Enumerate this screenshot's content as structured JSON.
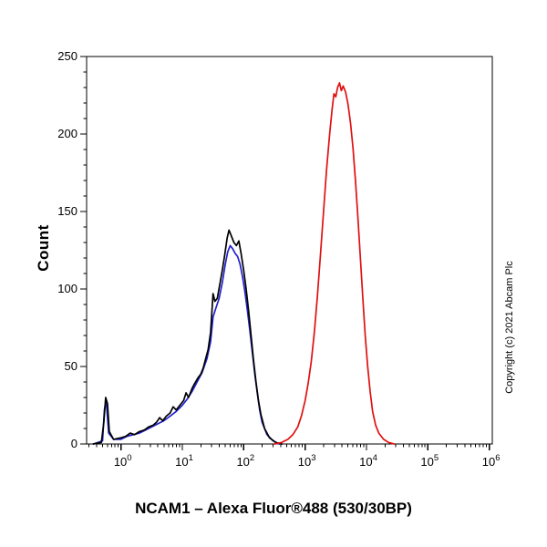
{
  "page": {
    "title": "NCAM1 – Alexa Fluor®488 (530/30BP)",
    "copyright": "Copyright (c) 2021 Abcam Plc"
  },
  "chart_data": {
    "type": "line",
    "subtype": "flow-cytometry-histogram",
    "title": "NCAM1 – Alexa Fluor®488 (530/30BP)",
    "xlabel": "",
    "ylabel": "Count",
    "x_scale": "log10",
    "x_range_log": [
      -0.56,
      6.05
    ],
    "ylim": [
      0,
      250
    ],
    "y_major_ticks": [
      0,
      50,
      100,
      150,
      200,
      250
    ],
    "y_minor_step": 10,
    "x_tick_exponents": [
      0,
      1,
      2,
      3,
      4,
      5,
      6
    ],
    "grid": false,
    "legend": "none",
    "frame_color": "#000000",
    "series": [
      {
        "name": "control-blue",
        "color": "#2222cc",
        "points": [
          [
            -0.45,
            0
          ],
          [
            -0.3,
            2
          ],
          [
            -0.27,
            22
          ],
          [
            -0.24,
            28
          ],
          [
            -0.2,
            7
          ],
          [
            -0.12,
            3
          ],
          [
            0.0,
            3
          ],
          [
            0.1,
            5
          ],
          [
            0.2,
            6
          ],
          [
            0.3,
            7
          ],
          [
            0.4,
            9
          ],
          [
            0.5,
            11
          ],
          [
            0.6,
            13
          ],
          [
            0.7,
            15
          ],
          [
            0.8,
            18
          ],
          [
            0.9,
            21
          ],
          [
            1.0,
            25
          ],
          [
            1.08,
            29
          ],
          [
            1.16,
            34
          ],
          [
            1.24,
            40
          ],
          [
            1.32,
            46
          ],
          [
            1.4,
            55
          ],
          [
            1.46,
            66
          ],
          [
            1.5,
            82
          ],
          [
            1.55,
            88
          ],
          [
            1.6,
            94
          ],
          [
            1.65,
            104
          ],
          [
            1.7,
            116
          ],
          [
            1.74,
            124
          ],
          [
            1.78,
            128
          ],
          [
            1.82,
            126
          ],
          [
            1.86,
            123
          ],
          [
            1.9,
            121
          ],
          [
            1.94,
            116
          ],
          [
            1.98,
            108
          ],
          [
            2.02,
            98
          ],
          [
            2.06,
            86
          ],
          [
            2.1,
            73
          ],
          [
            2.14,
            59
          ],
          [
            2.18,
            45
          ],
          [
            2.22,
            33
          ],
          [
            2.26,
            22
          ],
          [
            2.3,
            14
          ],
          [
            2.38,
            6
          ],
          [
            2.48,
            2
          ],
          [
            2.58,
            0
          ]
        ]
      },
      {
        "name": "control-black",
        "color": "#000000",
        "points": [
          [
            -0.45,
            0
          ],
          [
            -0.32,
            1
          ],
          [
            -0.28,
            14
          ],
          [
            -0.25,
            30
          ],
          [
            -0.22,
            26
          ],
          [
            -0.19,
            8
          ],
          [
            -0.12,
            3
          ],
          [
            0.0,
            4
          ],
          [
            0.08,
            5
          ],
          [
            0.15,
            7
          ],
          [
            0.22,
            6
          ],
          [
            0.3,
            8
          ],
          [
            0.38,
            9
          ],
          [
            0.45,
            11
          ],
          [
            0.52,
            12
          ],
          [
            0.58,
            14
          ],
          [
            0.63,
            17
          ],
          [
            0.68,
            15
          ],
          [
            0.74,
            18
          ],
          [
            0.8,
            20
          ],
          [
            0.85,
            24
          ],
          [
            0.9,
            22
          ],
          [
            0.96,
            25
          ],
          [
            1.02,
            28
          ],
          [
            1.06,
            33
          ],
          [
            1.1,
            30
          ],
          [
            1.16,
            36
          ],
          [
            1.2,
            39
          ],
          [
            1.26,
            43
          ],
          [
            1.3,
            45
          ],
          [
            1.34,
            49
          ],
          [
            1.38,
            55
          ],
          [
            1.42,
            61
          ],
          [
            1.46,
            72
          ],
          [
            1.5,
            97
          ],
          [
            1.53,
            92
          ],
          [
            1.57,
            94
          ],
          [
            1.61,
            103
          ],
          [
            1.65,
            112
          ],
          [
            1.69,
            122
          ],
          [
            1.73,
            133
          ],
          [
            1.76,
            138
          ],
          [
            1.8,
            134
          ],
          [
            1.84,
            130
          ],
          [
            1.88,
            128
          ],
          [
            1.92,
            131
          ],
          [
            1.96,
            122
          ],
          [
            2.0,
            112
          ],
          [
            2.04,
            100
          ],
          [
            2.08,
            86
          ],
          [
            2.12,
            70
          ],
          [
            2.16,
            54
          ],
          [
            2.2,
            40
          ],
          [
            2.24,
            28
          ],
          [
            2.28,
            19
          ],
          [
            2.34,
            10
          ],
          [
            2.42,
            4
          ],
          [
            2.52,
            1
          ],
          [
            2.62,
            0
          ]
        ]
      },
      {
        "name": "ncam1-red",
        "color": "#e01010",
        "points": [
          [
            2.5,
            0
          ],
          [
            2.62,
            1
          ],
          [
            2.72,
            3
          ],
          [
            2.8,
            6
          ],
          [
            2.88,
            11
          ],
          [
            2.94,
            18
          ],
          [
            3.0,
            28
          ],
          [
            3.05,
            39
          ],
          [
            3.1,
            53
          ],
          [
            3.15,
            72
          ],
          [
            3.2,
            95
          ],
          [
            3.25,
            122
          ],
          [
            3.3,
            150
          ],
          [
            3.35,
            177
          ],
          [
            3.4,
            200
          ],
          [
            3.44,
            216
          ],
          [
            3.47,
            226
          ],
          [
            3.5,
            224
          ],
          [
            3.53,
            230
          ],
          [
            3.56,
            233
          ],
          [
            3.59,
            228
          ],
          [
            3.62,
            231
          ],
          [
            3.66,
            227
          ],
          [
            3.7,
            219
          ],
          [
            3.74,
            207
          ],
          [
            3.78,
            191
          ],
          [
            3.82,
            170
          ],
          [
            3.86,
            146
          ],
          [
            3.9,
            120
          ],
          [
            3.94,
            94
          ],
          [
            3.98,
            70
          ],
          [
            4.02,
            50
          ],
          [
            4.06,
            34
          ],
          [
            4.1,
            21
          ],
          [
            4.15,
            12
          ],
          [
            4.2,
            7
          ],
          [
            4.28,
            3
          ],
          [
            4.36,
            1
          ],
          [
            4.45,
            0
          ]
        ]
      }
    ]
  }
}
